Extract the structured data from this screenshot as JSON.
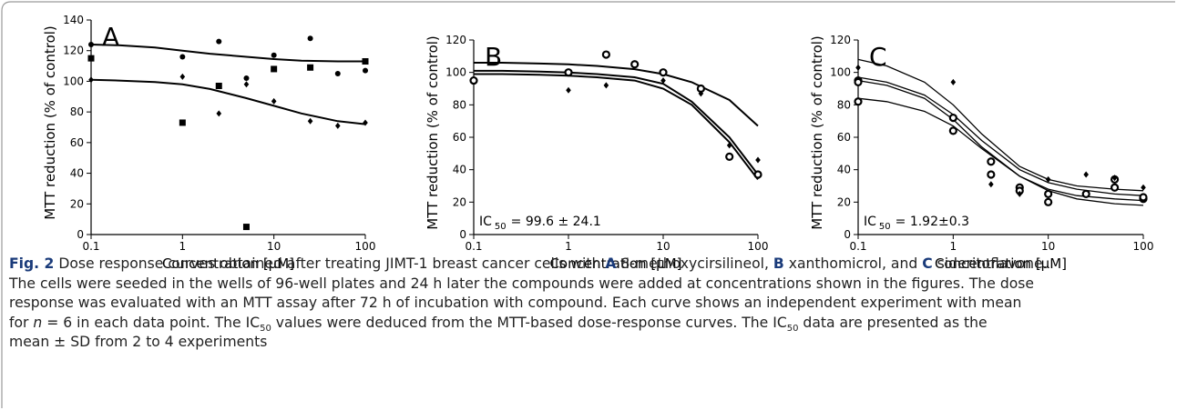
{
  "chart_data": [
    {
      "type": "scatter",
      "panel_label": "A",
      "xlabel": "Concentration [μM]",
      "ylabel": "MTT reduction (% of control)",
      "log_x": true,
      "xlim": [
        0.1,
        100
      ],
      "xticks": [
        0.1,
        1,
        10,
        100
      ],
      "ylim": [
        0,
        140
      ],
      "yticks": [
        0,
        20,
        40,
        60,
        80,
        100,
        120,
        140
      ],
      "series": [
        {
          "marker": "square",
          "color": "#000000",
          "x": [
            0.1,
            1,
            2.5,
            5,
            10,
            25,
            100
          ],
          "values": [
            115,
            73,
            97,
            5,
            108,
            109,
            113
          ]
        },
        {
          "marker": "dot",
          "color": "#000000",
          "x": [
            0.1,
            1,
            2.5,
            5,
            10,
            25,
            50,
            100
          ],
          "values": [
            124,
            116,
            126,
            102,
            117,
            128,
            105,
            107
          ]
        },
        {
          "marker": "diamond",
          "color": "#000000",
          "x": [
            0.1,
            1,
            2.5,
            5,
            10,
            25,
            50,
            100
          ],
          "values": [
            101,
            103,
            79,
            98,
            87,
            74,
            71,
            73
          ]
        }
      ],
      "curve_x": [
        0.1,
        0.2,
        0.5,
        1,
        2,
        5,
        10,
        20,
        50,
        100
      ],
      "curves": [
        {
          "color": "#000000",
          "values": [
            124,
            123.5,
            122,
            120,
            118,
            116,
            114.5,
            113.5,
            113,
            113
          ]
        },
        {
          "color": "#000000",
          "values": [
            101,
            100.5,
            99.5,
            98,
            95,
            89,
            84,
            79,
            74,
            72
          ]
        }
      ]
    },
    {
      "type": "scatter",
      "panel_label": "B",
      "xlabel": "Concentration [μM]",
      "ylabel": "MTT reduction (% of control)",
      "log_x": true,
      "xlim": [
        0.1,
        100
      ],
      "xticks": [
        0.1,
        1,
        10,
        100
      ],
      "ylim": [
        0,
        120
      ],
      "yticks": [
        0,
        20,
        40,
        60,
        80,
        100,
        120
      ],
      "annotation": {
        "text": "IC",
        "sub": "50",
        "rest": "= 99.6 ± 24.1"
      },
      "series": [
        {
          "marker": "ring",
          "color": "#000000",
          "x": [
            0.1,
            1,
            2.5,
            5,
            10,
            25,
            50,
            100
          ],
          "values": [
            95,
            100,
            111,
            105,
            100,
            90,
            48,
            37
          ]
        },
        {
          "marker": "diamond",
          "color": "#000000",
          "x": [
            1,
            2.5,
            10,
            25,
            50,
            100
          ],
          "values": [
            89,
            92,
            95,
            87,
            55,
            46
          ]
        }
      ],
      "curve_x": [
        0.1,
        0.2,
        0.5,
        1,
        2,
        5,
        10,
        20,
        50,
        100
      ],
      "curves": [
        {
          "color": "#000000",
          "values": [
            106,
            106,
            105.5,
            105,
            104,
            102,
            99,
            94,
            83,
            67
          ]
        },
        {
          "color": "#000000",
          "values": [
            101,
            101,
            100.5,
            100,
            99,
            97,
            93,
            82,
            60,
            37
          ]
        },
        {
          "color": "#000000",
          "values": [
            99,
            99,
            98.5,
            98,
            97,
            95,
            90,
            80,
            57,
            34
          ]
        }
      ]
    },
    {
      "type": "scatter",
      "panel_label": "C",
      "xlabel": "Concentration [μM]",
      "ylabel": "MTT reduction (% of control)",
      "log_x": true,
      "xlim": [
        0.1,
        100
      ],
      "xticks": [
        0.1,
        1,
        10,
        100
      ],
      "ylim": [
        0,
        120
      ],
      "yticks": [
        0,
        20,
        40,
        60,
        80,
        100,
        120
      ],
      "annotation": {
        "text": "IC",
        "sub": "50",
        "rest": "= 1.92±0.3"
      },
      "series": [
        {
          "marker": "ring",
          "color": "#000000",
          "x": [
            0.1,
            0.1,
            0.1,
            1,
            1,
            2.5,
            2.5,
            5,
            5,
            10,
            10,
            25,
            50,
            50,
            100,
            100
          ],
          "values": [
            95,
            82,
            94,
            72,
            64,
            45,
            37,
            29,
            27,
            25,
            20,
            25,
            34,
            29,
            22,
            23
          ]
        },
        {
          "marker": "diamond",
          "color": "#000000",
          "x": [
            0.1,
            1,
            2.5,
            5,
            10,
            25,
            50,
            100
          ],
          "values": [
            103,
            94,
            31,
            25,
            34,
            37,
            35,
            29
          ]
        }
      ],
      "curve_x": [
        0.1,
        0.2,
        0.5,
        1,
        2,
        5,
        10,
        20,
        50,
        100
      ],
      "curves": [
        {
          "color": "#000000",
          "values": [
            108,
            104,
            94,
            80,
            62,
            42,
            34,
            30,
            28,
            27
          ]
        },
        {
          "color": "#000000",
          "values": [
            97,
            94,
            86,
            74,
            58,
            40,
            32,
            28,
            25,
            24
          ]
        },
        {
          "color": "#000000",
          "values": [
            95,
            92,
            84,
            71,
            54,
            36,
            28,
            24,
            22,
            21
          ]
        },
        {
          "color": "#000000",
          "values": [
            84,
            82,
            76,
            67,
            53,
            36,
            27,
            22,
            19,
            18
          ]
        }
      ]
    }
  ],
  "caption": {
    "lines": [
      [
        "Fig. 2",
        " Dose response curves obtained after treating JIMT-1 breast cancer cells with ",
        "A",
        " 8-methoxycirsilineol, ",
        "B",
        " xanthomicrol, and ",
        "C",
        " sideritoflavone."
      ],
      [
        "The cells were seeded in the wells of 96-well plates and 24 h later the compounds were added at concentrations shown in the figures. The dose"
      ],
      [
        "response was evaluated with an MTT assay after 72 h of incubation with compound. Each curve shows an independent experiment with mean"
      ],
      [
        "for ",
        "n",
        " = 6 in each data point. The IC",
        "50",
        " values were deduced from the MTT-based dose-response curves. The IC",
        "50",
        " data are presented as the"
      ],
      [
        "mean ± SD from 2 to 4 experiments"
      ]
    ]
  }
}
